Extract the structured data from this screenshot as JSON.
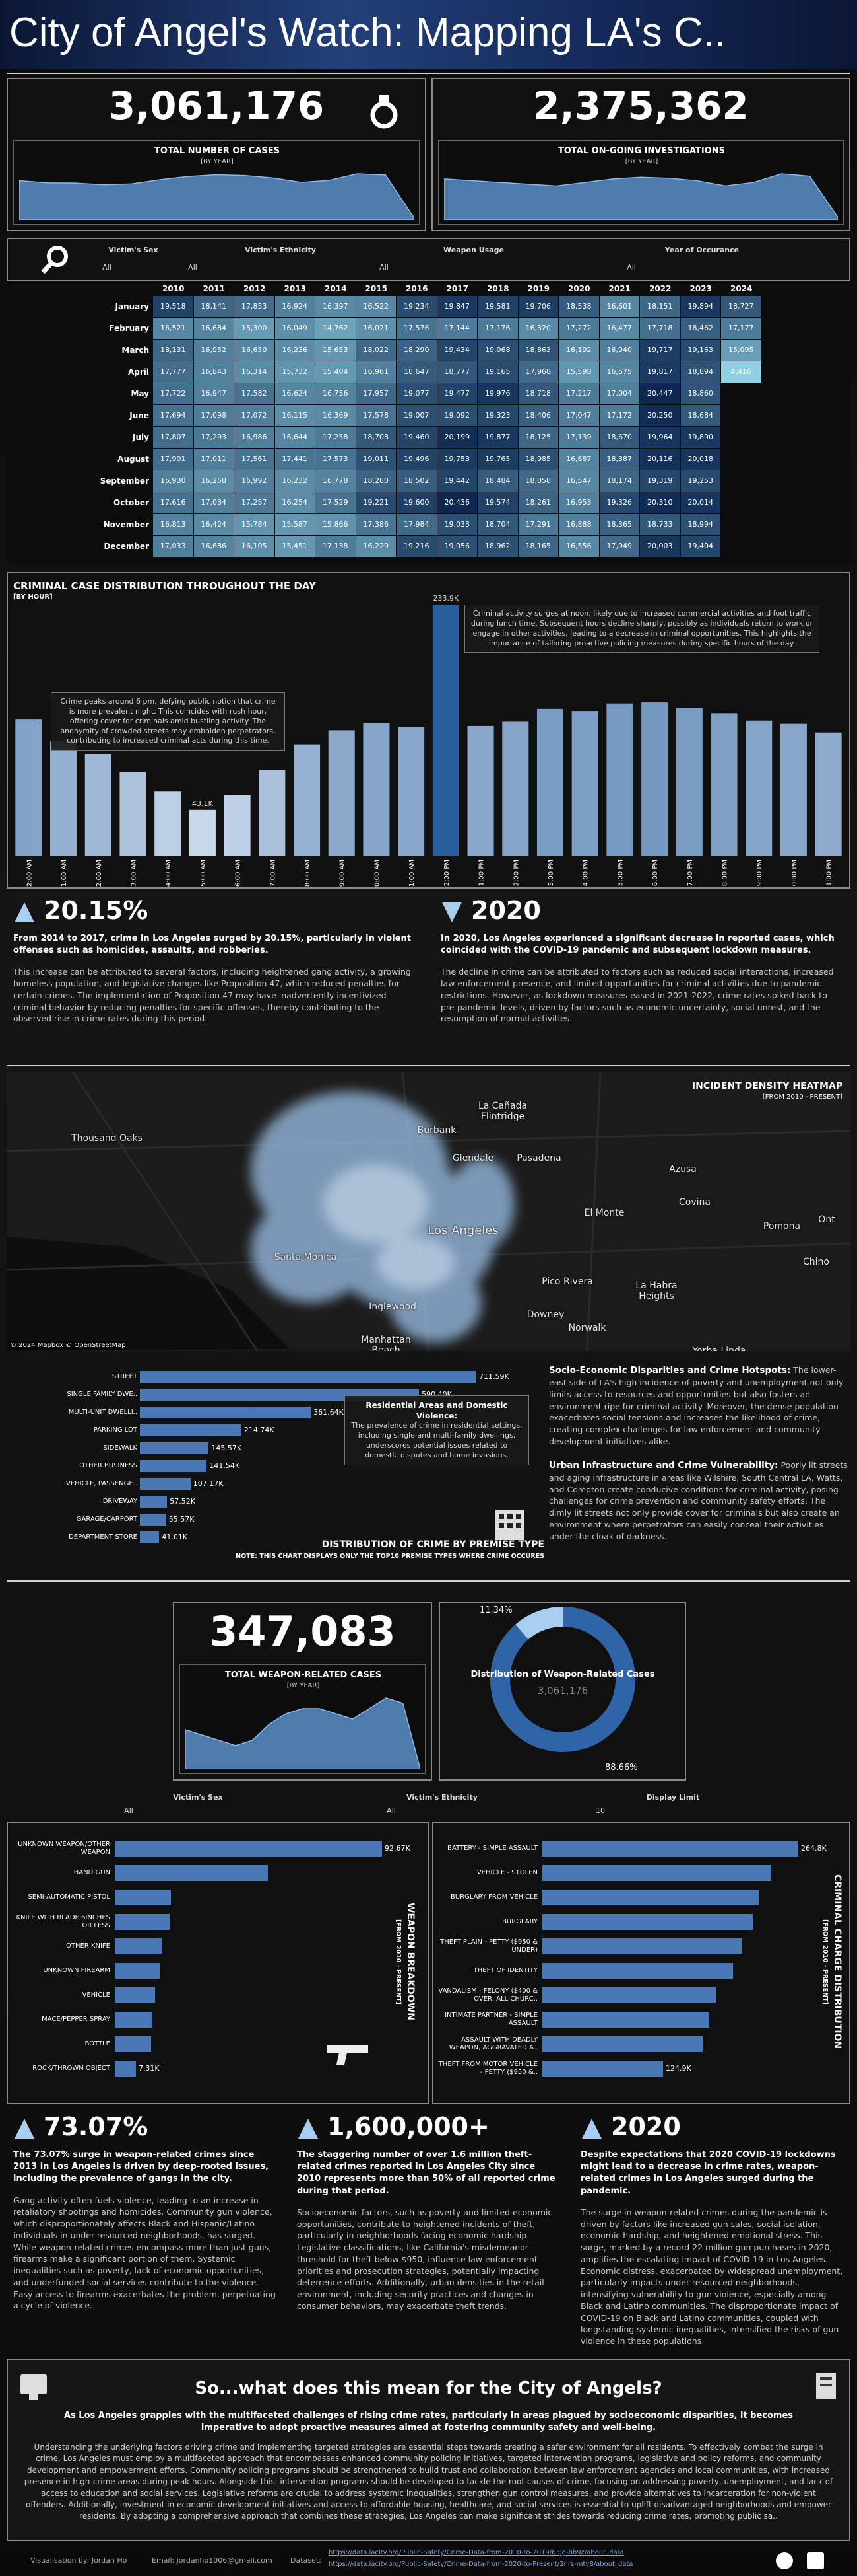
{
  "title": "City of Angel's Watch: Mapping LA's C..",
  "kpis": [
    {
      "value": "3,061,176",
      "label": "TOTAL NUMBER OF CASES",
      "sub": "[BY YEAR]"
    },
    {
      "value": "2,375,362",
      "label": "TOTAL ON-GOING INVESTIGATIONS",
      "sub": "[BY YEAR]"
    }
  ],
  "filters": [
    {
      "label": "Victim's Sex",
      "value": "All"
    },
    {
      "label": "Victim's Ethnicity",
      "value": "All"
    },
    {
      "label": "Weapon Usage",
      "value": "All"
    },
    {
      "label": "Year of Occurance",
      "value": "All"
    }
  ],
  "heatmap": {
    "years": [
      2010,
      2011,
      2012,
      2013,
      2014,
      2015,
      2016,
      2017,
      2018,
      2019,
      2020,
      2021,
      2022,
      2023,
      2024
    ],
    "months": [
      "January",
      "February",
      "March",
      "April",
      "May",
      "June",
      "July",
      "August",
      "September",
      "October",
      "November",
      "December"
    ],
    "colors": [
      "#8fd0e3",
      "#0d2750"
    ],
    "values": [
      [
        "19,518",
        "18,141",
        "17,853",
        "16,924",
        "16,397",
        "16,522",
        "19,234",
        "19,847",
        "19,581",
        "19,706",
        "18,538",
        "16,601",
        "18,151",
        "19,894",
        "18,727"
      ],
      [
        "16,521",
        "16,684",
        "15,300",
        "16,049",
        "14,762",
        "16,021",
        "17,576",
        "17,144",
        "17,176",
        "16,320",
        "17,272",
        "16,477",
        "17,718",
        "18,462",
        "17,177"
      ],
      [
        "18,131",
        "16,952",
        "16,650",
        "16,236",
        "15,653",
        "18,022",
        "18,290",
        "19,434",
        "19,068",
        "18,863",
        "16,192",
        "16,940",
        "19,717",
        "19,163",
        "15,095"
      ],
      [
        "17,777",
        "16,843",
        "16,314",
        "15,732",
        "15,404",
        "16,961",
        "18,647",
        "18,777",
        "19,165",
        "17,968",
        "15,598",
        "16,575",
        "19,817",
        "18,894",
        "4,416"
      ],
      [
        "17,722",
        "16,947",
        "17,582",
        "16,624",
        "16,736",
        "17,957",
        "19,077",
        "19,477",
        "19,976",
        "18,718",
        "17,217",
        "17,004",
        "20,447",
        "18,860",
        null
      ],
      [
        "17,694",
        "17,098",
        "17,072",
        "16,115",
        "16,369",
        "17,578",
        "19,007",
        "19,092",
        "19,323",
        "18,406",
        "17,047",
        "17,172",
        "20,250",
        "18,684",
        null
      ],
      [
        "17,807",
        "17,293",
        "16,986",
        "16,644",
        "17,258",
        "18,708",
        "19,460",
        "20,199",
        "19,877",
        "18,125",
        "17,139",
        "18,670",
        "19,964",
        "19,890",
        null
      ],
      [
        "17,901",
        "17,011",
        "17,561",
        "17,441",
        "17,573",
        "19,011",
        "19,496",
        "19,753",
        "19,765",
        "18,985",
        "16,687",
        "18,387",
        "20,116",
        "20,018",
        null
      ],
      [
        "16,930",
        "16,258",
        "16,992",
        "16,232",
        "16,778",
        "18,280",
        "18,502",
        "19,442",
        "18,484",
        "18,058",
        "16,547",
        "18,174",
        "19,319",
        "19,253",
        null
      ],
      [
        "17,616",
        "17,034",
        "17,257",
        "16,254",
        "17,529",
        "19,221",
        "19,600",
        "20,436",
        "19,574",
        "18,261",
        "16,953",
        "19,326",
        "20,310",
        "20,014",
        null
      ],
      [
        "16,813",
        "16,424",
        "15,784",
        "15,587",
        "15,866",
        "17,386",
        "17,984",
        "19,033",
        "18,704",
        "17,291",
        "16,888",
        "18,365",
        "18,733",
        "18,994",
        null
      ],
      [
        "17,033",
        "16,686",
        "16,105",
        "15,451",
        "17,138",
        "16,229",
        "19,216",
        "19,056",
        "18,962",
        "18,165",
        "16,556",
        "17,949",
        "20,003",
        "19,404",
        null
      ]
    ]
  },
  "chart_data": [
    {
      "type": "area",
      "color": "#5b8fc9",
      "values": [
        209000,
        200000,
        199000,
        192000,
        196000,
        213000,
        226000,
        233000,
        230000,
        220000,
        202000,
        210000,
        237000,
        232000,
        60000
      ]
    },
    {
      "type": "area",
      "color": "#5b8fc9",
      "values": [
        170000,
        165000,
        160000,
        155000,
        150000,
        160000,
        170000,
        175000,
        172000,
        165000,
        150000,
        160000,
        185000,
        178000,
        60000
      ]
    },
    {
      "type": "bar",
      "title": "CRIMINAL CASE DISTRIBUTION THROUGHOUT THE DAY",
      "subtitle": "[BY HOUR]",
      "colors": [
        "#eef5fc",
        "#2a5e9c"
      ],
      "categories": [
        "12:00 AM",
        "1:00 AM",
        "2:00 AM",
        "3:00 AM",
        "4:00 AM",
        "5:00 AM",
        "6:00 AM",
        "7:00 AM",
        "8:00 AM",
        "9:00 AM",
        "10:00 AM",
        "11:00 AM",
        "12:00 PM",
        "1:00 PM",
        "2:00 PM",
        "3:00 PM",
        "4:00 PM",
        "5:00 PM",
        "6:00 PM",
        "7:00 PM",
        "8:00 PM",
        "9:00 PM",
        "10:00 PM",
        "11:00 PM"
      ],
      "values": [
        127000,
        107000,
        95000,
        78000,
        60000,
        43100,
        57000,
        80000,
        104000,
        117000,
        124000,
        120000,
        233900,
        121000,
        125000,
        137000,
        135000,
        142000,
        143000,
        138000,
        133000,
        126000,
        123000,
        115000
      ],
      "value_labels": [
        null,
        null,
        null,
        null,
        null,
        "43.1K",
        null,
        null,
        null,
        null,
        null,
        null,
        "233.9K",
        null,
        null,
        null,
        null,
        null,
        null,
        null,
        null,
        null,
        null,
        null
      ],
      "annotations": [
        "Crime peaks around 6 pm, defying public notion that crime is more prevalent night. This coincides with rush hour, offering cover for criminals amid bustling activity. The anonymity of crowded streets may embolden perpetrators, contributing to increased criminal acts during this time.",
        "Criminal activity surges at noon, likely due to increased commercial activities and foot traffic during lunch time. Subsequent hours decline sharply, possibly as individuals return to work or engage in other activities, leading to a decrease in criminal opportunities. This highlights the importance of tailoring proactive policing measures during specific hours of the day."
      ]
    },
    {
      "type": "hbar",
      "title": "DISTRIBUTION OF CRIME BY PREMISE TYPE",
      "note": "NOTE: THIS CHART DISPLAYS ONLY THE TOP10 PREMISE TYPES WHERE CRIME OCCURES",
      "color": "#4a78b5",
      "categories": [
        "STREET",
        "SINGLE FAMILY DWE..",
        "MULTI-UNIT DWELLI..",
        "PARKING LOT",
        "SIDEWALK",
        "OTHER BUSINESS",
        "VEHICLE, PASSENGE..",
        "DRIVEWAY",
        "GARAGE/CARPORT",
        "DEPARTMENT STORE"
      ],
      "values": [
        711590,
        590400,
        361640,
        214740,
        145570,
        141540,
        107170,
        57520,
        55570,
        41010
      ],
      "value_labels": [
        "711.59K",
        "590.40K",
        "361.64K",
        "214.74K",
        "145.57K",
        "141.54K",
        "107.17K",
        "57.52K",
        "55.57K",
        "41.01K"
      ],
      "annotation": {
        "title": "Residential Areas and Domestic Violence:",
        "text": "The prevalence of crime in residential settings, including single and multi-family dwellings, underscores potential issues related to domestic disputes and home invasions."
      }
    },
    {
      "type": "pie",
      "title": "Distribution of Weapon-Related Cases",
      "colors": [
        "#a9cff0",
        "#2f65a6"
      ],
      "values": [
        11.34,
        88.66
      ],
      "value_labels": [
        "11.34%",
        "88.66%"
      ]
    },
    {
      "type": "hbar",
      "title": "WEAPON BREAKDOWN",
      "subtitle": "[FROM 2010 - PRESENT]",
      "color": "#4a78b5",
      "categories": [
        "UNKNOWN WEAPON/OTHER WEAPON",
        "HAND GUN",
        "SEMI-AUTOMATIC PISTOL",
        "KNIFE WITH BLADE 6INCHES OR LESS",
        "OTHER KNIFE",
        "UNKNOWN FIREARM",
        "VEHICLE",
        "MACE/PEPPER SPRAY",
        "BOTTLE",
        "ROCK/THROWN OBJECT"
      ],
      "values": [
        92670,
        53000,
        19500,
        19000,
        16500,
        15500,
        14000,
        13000,
        12500,
        7310
      ],
      "value_labels": [
        "92.67K",
        null,
        null,
        null,
        null,
        null,
        null,
        null,
        null,
        "7.31K"
      ]
    },
    {
      "type": "hbar",
      "title": "CRIMINAL CHARGE DISTRIBUTION",
      "subtitle": "[FROM 2010 - PRESENT]",
      "color": "#4a78b5",
      "categories": [
        "BATTERY - SIMPLE ASSAULT",
        "VEHICLE - STOLEN",
        "BURGLARY FROM VEHICLE",
        "BURGLARY",
        "THEFT PLAIN - PETTY ($950 & UNDER)",
        "THEFT OF IDENTITY",
        "VANDALISM - FELONY ($400 & OVER, ALL CHURC..",
        "INTIMATE PARTNER - SIMPLE ASSAULT",
        "ASSAULT WITH DEADLY WEAPON, AGGRAVATED A..",
        "THEFT FROM MOTOR VEHICLE - PETTY ($950 &.."
      ],
      "values": [
        264800,
        237000,
        224000,
        218000,
        206000,
        197000,
        180000,
        173000,
        166000,
        124900
      ],
      "value_labels": [
        "264.8K",
        null,
        null,
        null,
        null,
        null,
        null,
        null,
        null,
        "124.9K"
      ]
    },
    {
      "type": "area",
      "color": "#5b8fc9",
      "values": [
        22000,
        21000,
        20000,
        19000,
        20000,
        23000,
        25000,
        26000,
        26000,
        25000,
        24000,
        26000,
        28000,
        27000,
        15000
      ]
    }
  ],
  "insights1": [
    {
      "headline": "20.15%",
      "lead": "From 2014 to 2017, crime in Los Angeles surged by 20.15%, particularly in violent offenses such as homicides, assaults, and robberies.",
      "body": "This increase can be attributed to several factors, including heightened gang activity, a growing homeless population, and legislative changes like Proposition 47, which reduced penalties for certain crimes. The implementation of Proposition 47 may have inadvertently incentivized criminal behavior by reducing penalties for specific offenses, thereby contributing to the observed rise in crime rates during this period."
    },
    {
      "headline": "2020",
      "lead": "In 2020, Los Angeles experienced a significant decrease in reported cases, which coincided with the COVID-19 pandemic and subsequent lockdown measures.",
      "body": "The decline in crime can be attributed to factors such as reduced social interactions, increased law enforcement presence, and limited opportunities for criminal activities due to pandemic restrictions. However, as lockdown measures eased in 2021-2022, crime rates spiked back to pre-pandemic levels, driven by factors such as economic uncertainty, social unrest, and the resumption of normal activities."
    }
  ],
  "map": {
    "title": "INCIDENT DENSITY HEATMAP",
    "subtitle": "[FROM 2010 - PRESENT]",
    "attribution": "© 2024 Mapbox © OpenStreetMap",
    "places": [
      "Thousand Oaks",
      "Burbank",
      "La Cañada Flintridge",
      "Glendale",
      "Pasadena",
      "Los Angeles",
      "Santa Monica",
      "El Monte",
      "Covina",
      "Azusa",
      "Pomona",
      "Inglewood",
      "Manhattan Beach",
      "Downey",
      "Norwalk",
      "Pico Rivera",
      "La Habra Heights",
      "Yorba Linda",
      "Chino",
      "Ont"
    ]
  },
  "socio": [
    {
      "heading": "Socio-Economic Disparities and Crime Hotspots:",
      "text": "The lower-east side of LA's high incidence of poverty and unemployment not only limits access to resources and opportunities but also fosters an environment ripe for criminal activity. Moreover, the dense population exacerbates social tensions and increases the likelihood of crime, creating complex challenges for law enforcement and community development initiatives alike."
    },
    {
      "heading": "Urban Infrastructure and Crime Vulnerability:",
      "text": "Poorly lit streets and aging infrastructure in areas like Wilshire, South Central LA, Watts, and Compton create conducive conditions for criminal activity, posing challenges for crime prevention and community safety efforts. The dimly lit streets not only provide cover for criminals but also create an environment where perpetrators can easily conceal their activities under the cloak of darkness."
    }
  ],
  "weapon_kpi": {
    "value": "347,083",
    "label": "TOTAL WEAPON-RELATED CASES",
    "sub": "[BY YEAR]"
  },
  "filters2": [
    {
      "label": "Victim's Sex",
      "value": "All"
    },
    {
      "label": "Victim's Ethnicity",
      "value": "All"
    },
    {
      "label": "Display Limit",
      "value": "10"
    }
  ],
  "insights2": [
    {
      "headline": "73.07%",
      "lead": "The 73.07% surge in weapon-related crimes since 2013 in Los Angeles is driven by deep-rooted issues, including the prevalence of gangs in the city.",
      "body": "Gang activity often fuels violence, leading to an increase in retaliatory shootings and homicides. Community gun violence, which disproportionately affects Black and Hispanic/Latino individuals in under-resourced neighborhoods, has surged. While weapon-related crimes encompass more than just guns, firearms make a significant portion of them. Systemic inequalities such as poverty, lack of economic opportunities, and underfunded social services contribute to the violence. Easy access to firearms exacerbates the problem, perpetuating a cycle of violence."
    },
    {
      "headline": "1,600,000+",
      "lead": "The staggering number of over 1.6 million theft-related crimes reported in Los Angeles City since 2010 represents more than 50% of all reported crime during that period.",
      "body": "Socioeconomic factors, such as poverty and limited economic opportunities, contribute to heightened incidents of theft, particularly in neighborhoods facing economic hardship. Legislative classifications, like California's misdemeanor threshold for theft below $950, influence law enforcement priorities and prosecution strategies, potentially impacting deterrence efforts. Additionally, urban densities in the retail environment, including security practices and changes in consumer behaviors, may exacerbate theft trends."
    },
    {
      "headline": "2020",
      "lead": "Despite expectations that 2020 COVID-19 lockdowns might lead to a decrease in crime rates, weapon-related crimes in Los Angeles surged during the pandemic.",
      "body": "The surge in weapon-related crimes during the pandemic is driven by factors like increased gun sales, social isolation, economic hardship, and heightened emotional stress. This surge, marked by a record 22 million gun purchases in 2020, amplifies the escalating impact of COVID-19 in Los Angeles. Economic distress, exacerbated by widespread unemployment, particularly impacts under-resourced neighborhoods, intensifying vulnerability to gun violence, especially among Black and Latino communities. The disproportionate impact of COVID-19 on Black and Latino communities, coupled with longstanding systemic inequalities, intensified the risks of gun violence in these populations."
    }
  ],
  "conclusion": {
    "title": "So...what does this mean for the City of Angels?",
    "lead": "As Los Angeles grapples with the multifaceted challenges of rising crime rates, particularly in areas plagued by socioeconomic disparities, it becomes imperative to adopt proactive measures aimed at fostering community safety and well-being.",
    "body": "Understanding the underlying factors driving crime and implementing targeted strategies are essential steps towards creating a safer environment for all residents. To effectively combat the surge in crime, Los Angeles must employ a multifaceted approach that encompasses enhanced community policing initiatives, targeted intervention programs, legislative and policy reforms, and community development and empowerment efforts. Community policing programs should be strengthened to build trust and collaboration between law enforcement agencies and local communities, with increased presence in high-crime areas during peak hours. Alongside this, intervention programs should be developed to tackle the root causes of crime, focusing on addressing poverty, unemployment, and lack of access to education and social services. Legislative reforms are crucial to address systemic inequalities, strengthen gun control measures, and provide alternatives to incarceration for non-violent offenders. Additionally, investment in economic development initiatives and access to affordable housing, healthcare, and social services is essential to uplift disadvantaged neighborhoods and empower residents. By adopting a comprehensive approach that combines these strategies, Los Angeles can make significant strides towards reducing crime rates, promoting public sa.."
  },
  "footer": {
    "author": "Visualisation by: Jordan Ho",
    "email": "Email: jordanho1006@gmail.com",
    "dataset": "Dataset:",
    "links": [
      "https://data.lacity.org/Public-Safety/Crime-Data-from-2010-to-2019/63jg-8b9z/about_data",
      "https://data.lacity.org/Public-Safety/Crime-Data-from-2020-to-Present/2nrs-mtv8/about_data"
    ]
  }
}
